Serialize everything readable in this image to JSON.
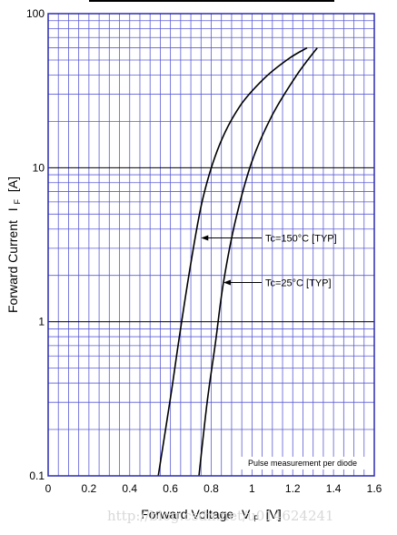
{
  "chart_data": {
    "type": "line",
    "title": "",
    "xlabel": "Forward Voltage",
    "xlabel_symbol": "V",
    "xlabel_sub": "F",
    "xlabel_unit": "[V]",
    "ylabel": "Forward Current",
    "ylabel_symbol": "I",
    "ylabel_sub": "F",
    "ylabel_unit": "[A]",
    "xlim": [
      0,
      1.6
    ],
    "ylim": [
      0.1,
      100
    ],
    "yscale": "log",
    "grid": true,
    "grid_color": "#5b5bd6",
    "frame_color": "#2a2ab0",
    "x_ticks": [
      "0",
      "0.2",
      "0.4",
      "0.6",
      "0.8",
      "1",
      "1.2",
      "1.4",
      "1.6"
    ],
    "y_ticks": [
      "0.1",
      "1",
      "10",
      "100"
    ],
    "series": [
      {
        "name": "Tc=150°C [TYP]",
        "x": [
          0.54,
          0.6,
          0.64,
          0.7,
          0.76,
          0.84,
          0.94,
          1.06,
          1.18,
          1.27
        ],
        "y": [
          0.1,
          0.32,
          0.74,
          2.4,
          6.4,
          14,
          25,
          38,
          51,
          60
        ]
      },
      {
        "name": "Tc=25°C [TYP]",
        "x": [
          0.74,
          0.78,
          0.82,
          0.86,
          0.92,
          1.0,
          1.1,
          1.22,
          1.32
        ],
        "y": [
          0.1,
          0.3,
          0.72,
          1.8,
          4.6,
          11,
          22,
          40,
          60
        ]
      }
    ],
    "annotations": [
      {
        "text": "Tc=150°C [TYP]",
        "points_to": {
          "x": 0.75,
          "y": 3.5
        }
      },
      {
        "text": "Tc=25°C [TYP]",
        "points_to": {
          "x": 0.86,
          "y": 1.8
        }
      },
      {
        "text": "Pulse measurement per diode"
      }
    ]
  },
  "watermark": "http://blog.csdn.net/u014624241"
}
